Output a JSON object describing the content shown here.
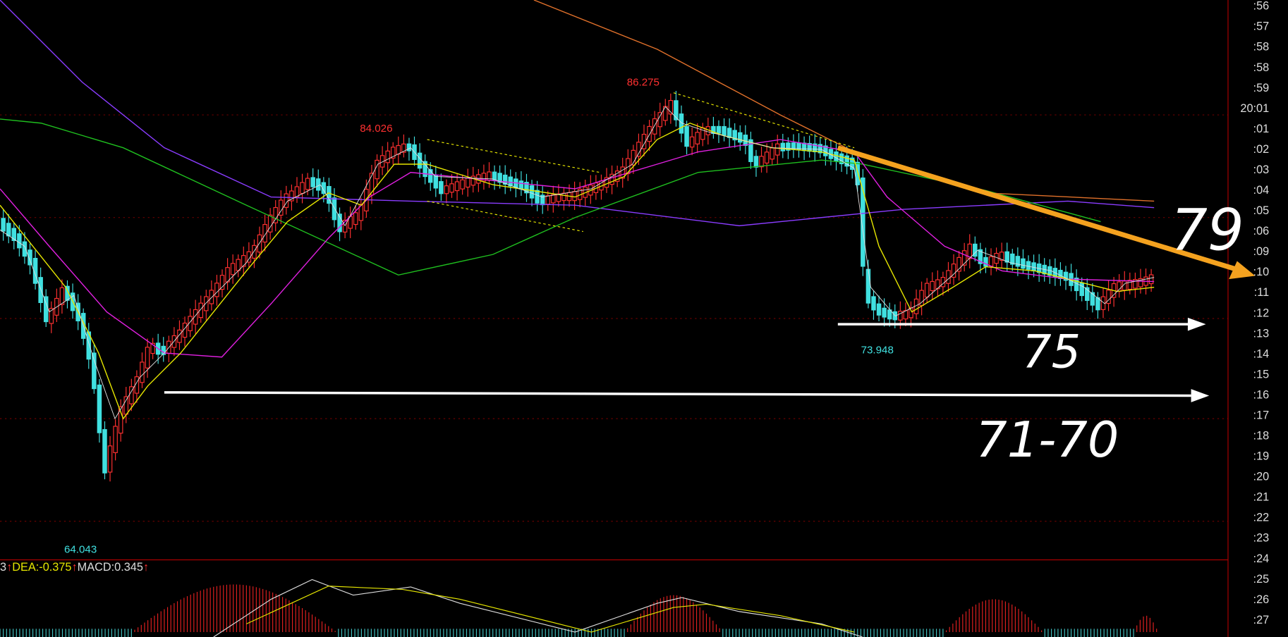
{
  "price_labels": [
    "86.275",
    "84.026",
    "73.948",
    "64.043"
  ],
  "time_axis": [
    ":56",
    ":57",
    ":58",
    ":58",
    ":59",
    "20:01",
    ":01",
    ":02",
    ":03",
    ":04",
    ":05",
    ":06",
    ":09",
    ":10",
    ":11",
    ":12",
    ":13",
    ":14",
    ":15",
    ":16",
    ":17",
    ":18",
    ":19",
    ":20",
    ":21",
    ":22",
    ":23",
    ":24",
    ":25",
    ":26",
    ":27"
  ],
  "indicator": {
    "prefix": "3",
    "arrow": "↑",
    "dea_label": "DEA:",
    "dea": "-0.375",
    "macd_label": "MACD:",
    "macd": "0.345"
  },
  "annotations": [
    "79",
    "75",
    "71-70"
  ]
}
